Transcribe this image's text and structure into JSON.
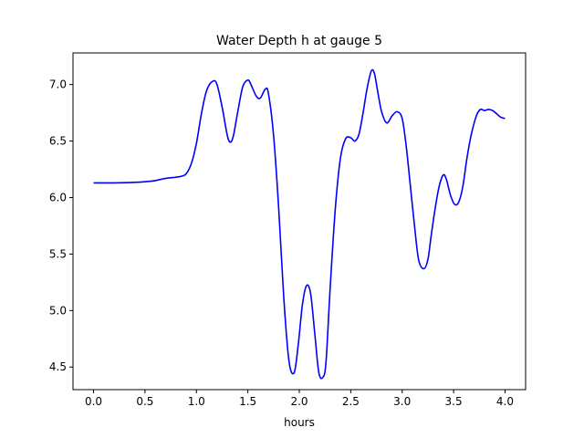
{
  "chart_data": {
    "type": "line",
    "title": "Water Depth h at gauge 5",
    "xlabel": "hours",
    "ylabel": "",
    "xlim": [
      -0.2,
      4.2
    ],
    "ylim": [
      4.3,
      7.28
    ],
    "xticks": [
      0.0,
      0.5,
      1.0,
      1.5,
      2.0,
      2.5,
      3.0,
      3.5,
      4.0
    ],
    "xtick_labels": [
      "0.0",
      "0.5",
      "1.0",
      "1.5",
      "2.0",
      "2.5",
      "3.0",
      "3.5",
      "4.0"
    ],
    "yticks": [
      4.5,
      5.0,
      5.5,
      6.0,
      6.5,
      7.0
    ],
    "ytick_labels": [
      "4.5",
      "5.0",
      "5.5",
      "6.0",
      "6.5",
      "7.0"
    ],
    "grid": false,
    "colors": {
      "line": "#0000ff",
      "axes": "#000000",
      "background": "#ffffff"
    },
    "series": [
      {
        "x": [
          0.0,
          0.2,
          0.4,
          0.5,
          0.6,
          0.7,
          0.8,
          0.86,
          0.9,
          0.95,
          1.0,
          1.05,
          1.1,
          1.16,
          1.2,
          1.25,
          1.3,
          1.33,
          1.36,
          1.4,
          1.45,
          1.5,
          1.53,
          1.58,
          1.62,
          1.67,
          1.7,
          1.75,
          1.8,
          1.85,
          1.9,
          1.95,
          1.99,
          2.03,
          2.07,
          2.11,
          2.15,
          2.19,
          2.23,
          2.26,
          2.3,
          2.35,
          2.4,
          2.45,
          2.5,
          2.54,
          2.58,
          2.62,
          2.66,
          2.7,
          2.73,
          2.76,
          2.8,
          2.85,
          2.9,
          2.95,
          3.0,
          3.04,
          3.08,
          3.12,
          3.16,
          3.21,
          3.25,
          3.28,
          3.32,
          3.36,
          3.4,
          3.43,
          3.47,
          3.51,
          3.55,
          3.59,
          3.63,
          3.67,
          3.72,
          3.76,
          3.8,
          3.84,
          3.88,
          3.92,
          3.96,
          4.0
        ],
        "y": [
          6.13,
          6.13,
          6.135,
          6.14,
          6.15,
          6.17,
          6.18,
          6.19,
          6.21,
          6.3,
          6.48,
          6.75,
          6.95,
          7.03,
          7.0,
          6.8,
          6.55,
          6.49,
          6.55,
          6.75,
          6.98,
          7.04,
          7.0,
          6.9,
          6.88,
          6.96,
          6.92,
          6.55,
          5.9,
          5.1,
          4.55,
          4.45,
          4.7,
          5.05,
          5.22,
          5.15,
          4.8,
          4.45,
          4.41,
          4.55,
          5.2,
          5.9,
          6.35,
          6.52,
          6.53,
          6.5,
          6.56,
          6.75,
          6.97,
          7.12,
          7.1,
          6.95,
          6.76,
          6.66,
          6.72,
          6.76,
          6.7,
          6.45,
          6.1,
          5.75,
          5.45,
          5.37,
          5.45,
          5.65,
          5.9,
          6.1,
          6.2,
          6.16,
          6.02,
          5.94,
          5.96,
          6.1,
          6.35,
          6.55,
          6.72,
          6.78,
          6.77,
          6.78,
          6.77,
          6.74,
          6.71,
          6.7
        ]
      }
    ]
  }
}
